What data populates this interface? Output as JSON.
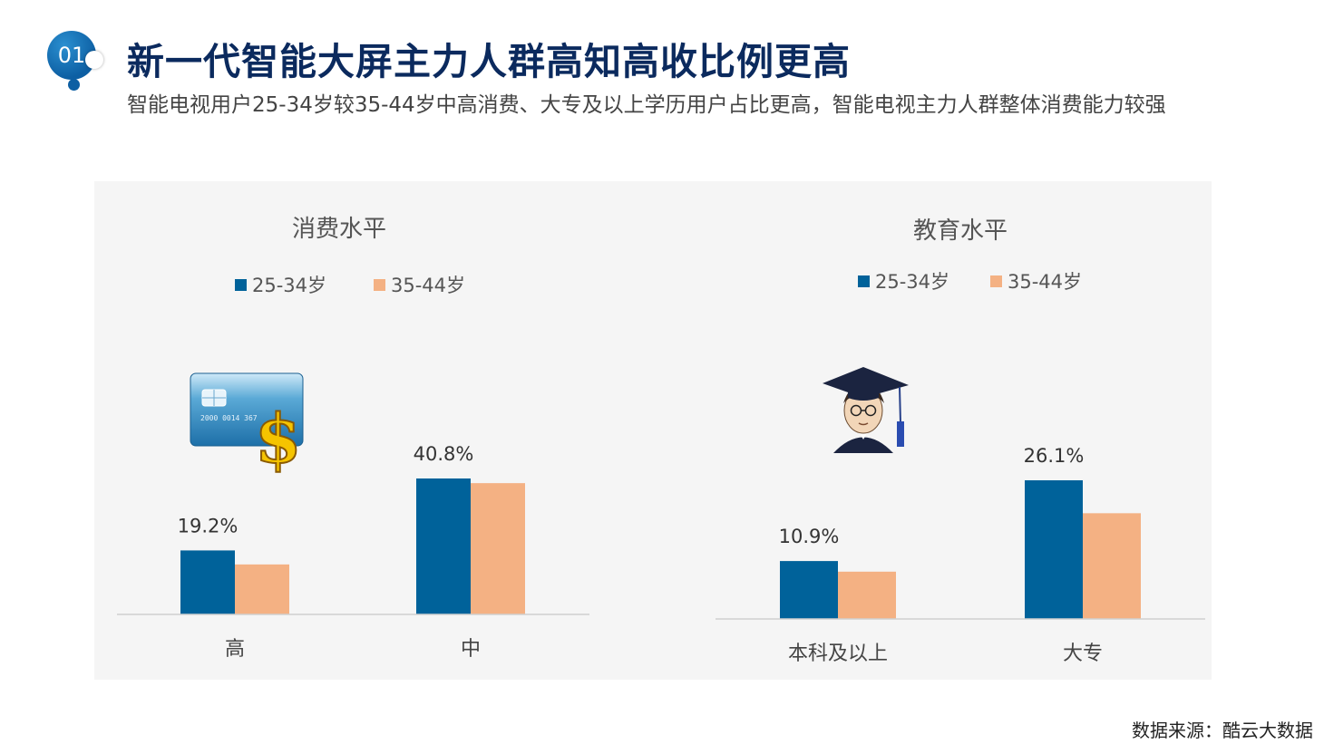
{
  "header": {
    "badge": "01",
    "title": "新一代智能大屏主力人群高知高收比例更高",
    "subtitle": "智能电视用户25-34岁较35-44岁中高消费、大专及以上学历用户占比更高，智能电视主力人群整体消费能力较强"
  },
  "footer": {
    "source": "数据来源：酷云大数据"
  },
  "colors": {
    "series_a": "#00629a",
    "series_b": "#f4b183",
    "panel": "#f5f5f5"
  },
  "icons": {
    "chart1": "credit-card-dollar-icon",
    "chart2": "graduate-student-icon"
  },
  "chart_data": [
    {
      "type": "bar",
      "title": "消费水平",
      "categories": [
        "高",
        "中"
      ],
      "series": [
        {
          "name": "25-34岁",
          "values": [
            19.2,
            40.8
          ],
          "labels": [
            "19.2%",
            "40.8%"
          ]
        },
        {
          "name": "35-44岁",
          "values": [
            15,
            39.4
          ]
        }
      ],
      "ylim": [
        0,
        42
      ],
      "legend_position": "top",
      "grid": false
    },
    {
      "type": "bar",
      "title": "教育水平",
      "categories": [
        "本科及以上",
        "大专"
      ],
      "series": [
        {
          "name": "25-34岁",
          "values": [
            10.9,
            26.1
          ],
          "labels": [
            "10.9%",
            "26.1%"
          ]
        },
        {
          "name": "35-44岁",
          "values": [
            8.9,
            19.9
          ]
        }
      ],
      "ylim": [
        0,
        27
      ],
      "legend_position": "top",
      "grid": false
    }
  ]
}
